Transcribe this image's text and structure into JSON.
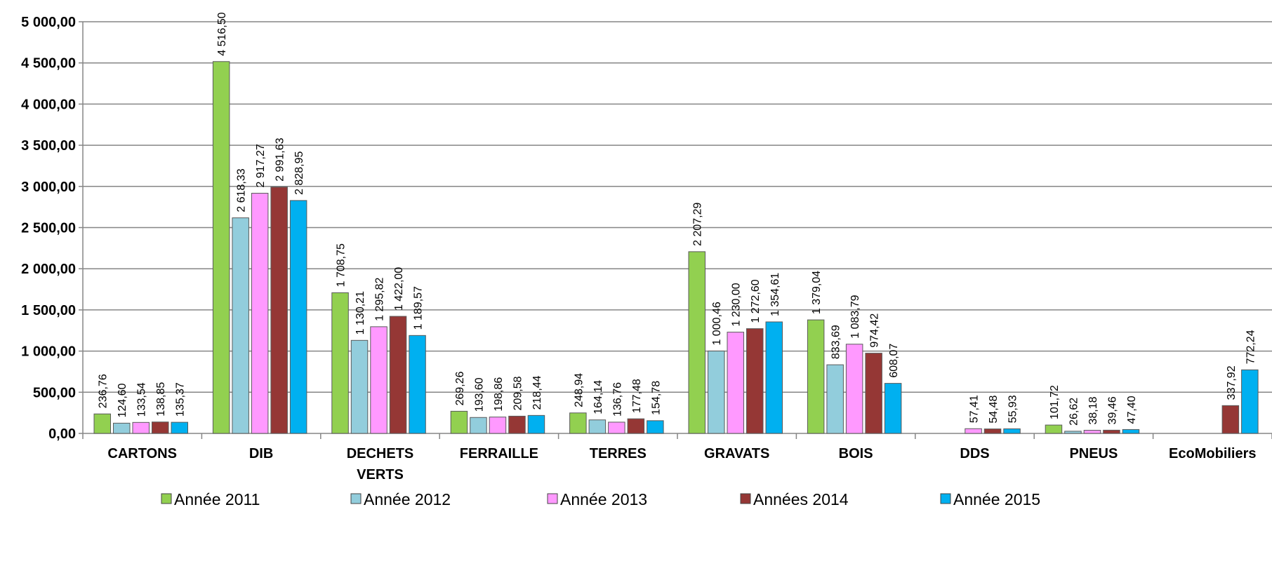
{
  "chart_data": {
    "type": "bar",
    "categories": [
      [
        "CARTONS"
      ],
      [
        "DIB"
      ],
      [
        "DECHETS",
        "VERTS"
      ],
      [
        "FERRAILLE"
      ],
      [
        "TERRES"
      ],
      [
        "GRAVATS"
      ],
      [
        "BOIS"
      ],
      [
        "DDS"
      ],
      [
        "PNEUS"
      ],
      [
        "EcoMobiliers"
      ]
    ],
    "series": [
      {
        "name": "Année 2011",
        "color": "#92D050",
        "values": [
          236.76,
          4516.5,
          1708.75,
          269.26,
          248.94,
          2207.29,
          1379.04,
          null,
          101.72,
          null
        ],
        "labels": [
          "236,76",
          "4 516,50",
          "1 708,75",
          "269,26",
          "248,94",
          "2 207,29",
          "1 379,04",
          "",
          "101,72",
          ""
        ]
      },
      {
        "name": "Année 2012",
        "color": "#92CDDC",
        "values": [
          124.6,
          2618.33,
          1130.21,
          193.6,
          164.14,
          1000.46,
          833.69,
          null,
          26.62,
          null
        ],
        "labels": [
          "124,60",
          "2 618,33",
          "1 130,21",
          "193,60",
          "164,14",
          "1 000,46",
          "833,69",
          "",
          "26,62",
          ""
        ]
      },
      {
        "name": "Année 2013",
        "color": "#FF99FF",
        "values": [
          133.54,
          2917.27,
          1295.82,
          198.86,
          136.76,
          1230.0,
          1083.79,
          57.41,
          38.18,
          null
        ],
        "labels": [
          "133,54",
          "2 917,27",
          "1 295,82",
          "198,86",
          "136,76",
          "1 230,00",
          "1 083,79",
          "57,41",
          "38,18",
          ""
        ]
      },
      {
        "name": "Années 2014",
        "color": "#953735",
        "values": [
          138.85,
          2991.63,
          1422.0,
          209.58,
          177.48,
          1272.6,
          974.42,
          54.48,
          39.46,
          337.92
        ],
        "labels": [
          "138,85",
          "2 991,63",
          "1 422,00",
          "209,58",
          "177,48",
          "1 272,60",
          "974,42",
          "54,48",
          "39,46",
          "337,92"
        ]
      },
      {
        "name": "Année 2015",
        "color": "#00B0F0",
        "values": [
          135.37,
          2828.95,
          1189.57,
          218.44,
          154.78,
          1354.61,
          608.07,
          55.93,
          47.4,
          772.24
        ],
        "labels": [
          "135,37",
          "2 828,95",
          "1 189,57",
          "218,44",
          "154,78",
          "1 354,61",
          "608,07",
          "55,93",
          "47,40",
          "772,24"
        ]
      }
    ],
    "ylim": [
      0,
      5000
    ],
    "yticks": [
      0,
      500,
      1000,
      1500,
      2000,
      2500,
      3000,
      3500,
      4000,
      4500,
      5000
    ],
    "ytick_labels": [
      "0,00",
      "500,00",
      "1 000,00",
      "1 500,00",
      "2 000,00",
      "2 500,00",
      "3 000,00",
      "3 500,00",
      "4 000,00",
      "4 500,00",
      "5 000,00"
    ],
    "grid": true,
    "legend_position": "bottom",
    "gridline_color": "#868686",
    "bar_border_color": "#5A5A5A"
  }
}
